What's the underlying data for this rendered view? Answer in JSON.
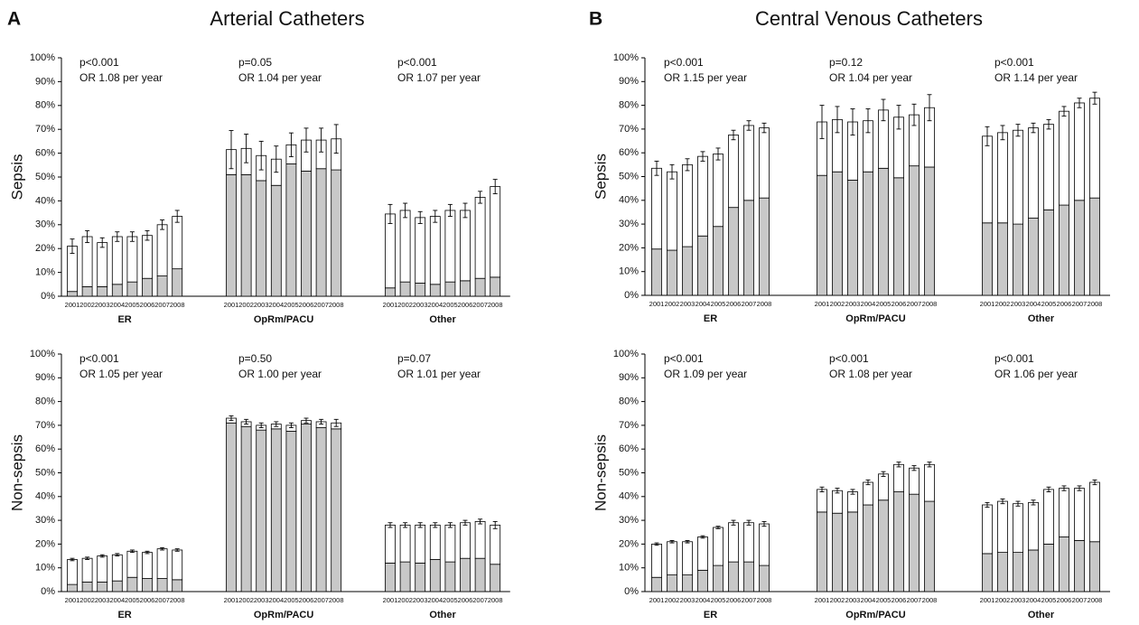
{
  "panels": [
    {
      "letter": "A",
      "title": "Arterial Catheters"
    },
    {
      "letter": "B",
      "title": "Central Venous Catheters"
    }
  ],
  "chart_data": [
    {
      "type": "bar",
      "ylabel": "Sepsis",
      "ylim": [
        0,
        100
      ],
      "yticks": [
        {
          "value": 0,
          "label": "0%"
        },
        {
          "value": 10,
          "label": "10%"
        },
        {
          "value": 20,
          "label": "20%"
        },
        {
          "value": 30,
          "label": "30%"
        },
        {
          "value": 40,
          "label": "40%"
        },
        {
          "value": 50,
          "label": "50%"
        },
        {
          "value": 60,
          "label": "60%"
        },
        {
          "value": 70,
          "label": "70%"
        },
        {
          "value": 80,
          "label": "80%"
        },
        {
          "value": 90,
          "label": "90%"
        },
        {
          "value": 100,
          "label": "100%"
        }
      ],
      "groups": [
        {
          "label": "ER",
          "annotations": [
            "p<0.001",
            "OR 1.08 per year"
          ],
          "categories": [
            "2001",
            "2002",
            "2003",
            "2004",
            "2005",
            "2006",
            "2007",
            "2008"
          ],
          "series": [
            {
              "color": "#c8c8c8",
              "values": [
                2,
                4,
                4,
                5,
                6,
                7.5,
                8.5,
                11.5
              ]
            },
            {
              "color": "#ffffff",
              "values": [
                19,
                21,
                18.5,
                20,
                19,
                18,
                21.5,
                22
              ],
              "errors": [
                3,
                2.5,
                2,
                2,
                2,
                2,
                2,
                2.5
              ]
            }
          ]
        },
        {
          "label": "OpRm/PACU",
          "annotations": [
            "p=0.05",
            "OR 1.04 per year"
          ],
          "categories": [
            "2001",
            "2002",
            "2003",
            "2004",
            "2005",
            "2006",
            "2007",
            "2008"
          ],
          "series": [
            {
              "color": "#c8c8c8",
              "values": [
                51,
                51,
                48.5,
                46.5,
                55.5,
                52.5,
                53.5,
                53
              ]
            },
            {
              "color": "#ffffff",
              "values": [
                10.5,
                11,
                10.5,
                11,
                8,
                13,
                12,
                13
              ],
              "errors": [
                8,
                6,
                6,
                5.5,
                5,
                5,
                5,
                6
              ]
            }
          ]
        },
        {
          "label": "Other",
          "annotations": [
            "p<0.001",
            "OR 1.07 per year"
          ],
          "categories": [
            "2001",
            "2002",
            "2003",
            "2004",
            "2005",
            "2006",
            "2007",
            "2008"
          ],
          "series": [
            {
              "color": "#c8c8c8",
              "values": [
                3.5,
                6,
                5.5,
                5,
                6,
                6.5,
                7.5,
                8
              ]
            },
            {
              "color": "#ffffff",
              "values": [
                31,
                30,
                27.5,
                28.5,
                30,
                29.5,
                34,
                38
              ],
              "errors": [
                4,
                3,
                2.5,
                2.5,
                2.5,
                3,
                2.5,
                3
              ]
            }
          ]
        }
      ]
    },
    {
      "type": "bar",
      "ylabel": "Non-sepsis",
      "ylim": [
        0,
        100
      ],
      "yticks": [
        {
          "value": 0,
          "label": "0%"
        },
        {
          "value": 10,
          "label": "10%"
        },
        {
          "value": 20,
          "label": "20%"
        },
        {
          "value": 30,
          "label": "30%"
        },
        {
          "value": 40,
          "label": "40%"
        },
        {
          "value": 50,
          "label": "50%"
        },
        {
          "value": 60,
          "label": "60%"
        },
        {
          "value": 70,
          "label": "70%"
        },
        {
          "value": 80,
          "label": "80%"
        },
        {
          "value": 90,
          "label": "90%"
        },
        {
          "value": 100,
          "label": "100%"
        }
      ],
      "groups": [
        {
          "label": "ER",
          "annotations": [
            "p<0.001",
            "OR 1.05 per year"
          ],
          "categories": [
            "2001",
            "2002",
            "2003",
            "2004",
            "2005",
            "2006",
            "2007",
            "2008"
          ],
          "series": [
            {
              "color": "#c8c8c8",
              "values": [
                3,
                4,
                4,
                4.5,
                6,
                5.5,
                5.5,
                5
              ]
            },
            {
              "color": "#ffffff",
              "values": [
                10.5,
                10,
                11,
                11,
                11,
                11,
                12.5,
                12.5
              ],
              "errors": [
                0.5,
                0.5,
                0.5,
                0.5,
                0.5,
                0.5,
                0.5,
                0.5
              ]
            }
          ]
        },
        {
          "label": "OpRm/PACU",
          "annotations": [
            "p=0.50",
            "OR 1.00 per year"
          ],
          "categories": [
            "2001",
            "2002",
            "2003",
            "2004",
            "2005",
            "2006",
            "2007",
            "2008"
          ],
          "series": [
            {
              "color": "#c8c8c8",
              "values": [
                71,
                69.5,
                68,
                68.5,
                67.5,
                70.5,
                69,
                68.5
              ]
            },
            {
              "color": "#ffffff",
              "values": [
                2,
                2,
                2,
                2,
                2.5,
                1.5,
                2.5,
                2.5
              ],
              "errors": [
                1,
                1,
                1,
                1,
                1,
                1,
                1,
                1.5
              ]
            }
          ]
        },
        {
          "label": "Other",
          "annotations": [
            "p=0.07",
            "OR 1.01 per year"
          ],
          "categories": [
            "2001",
            "2002",
            "2003",
            "2004",
            "2005",
            "2006",
            "2007",
            "2008"
          ],
          "series": [
            {
              "color": "#c8c8c8",
              "values": [
                12,
                12.5,
                12,
                13.5,
                12.5,
                14,
                14,
                11.5
              ]
            },
            {
              "color": "#ffffff",
              "values": [
                16,
                15.5,
                16,
                14.5,
                15.5,
                15,
                15.5,
                16.5
              ],
              "errors": [
                1,
                1,
                1,
                1,
                1,
                1,
                1,
                1.5
              ]
            }
          ]
        }
      ]
    },
    {
      "type": "bar",
      "ylabel": "Sepsis",
      "ylim": [
        0,
        100
      ],
      "yticks": [
        {
          "value": 0,
          "label": "0%"
        },
        {
          "value": 10,
          "label": "10%"
        },
        {
          "value": 20,
          "label": "20%"
        },
        {
          "value": 30,
          "label": "30%"
        },
        {
          "value": 40,
          "label": "40%"
        },
        {
          "value": 50,
          "label": "50%"
        },
        {
          "value": 60,
          "label": "60%"
        },
        {
          "value": 70,
          "label": "70%"
        },
        {
          "value": 80,
          "label": "80%"
        },
        {
          "value": 90,
          "label": "90%"
        },
        {
          "value": 100,
          "label": "100%"
        }
      ],
      "groups": [
        {
          "label": "ER",
          "annotations": [
            "p<0.001",
            "OR 1.15 per year"
          ],
          "categories": [
            "2001",
            "2002",
            "2003",
            "2004",
            "2005",
            "2006",
            "2007",
            "2008"
          ],
          "series": [
            {
              "color": "#c8c8c8",
              "values": [
                19.5,
                19,
                20.5,
                25,
                29,
                37,
                40,
                41
              ]
            },
            {
              "color": "#ffffff",
              "values": [
                34,
                33,
                34.5,
                33.5,
                30.5,
                30.5,
                31.5,
                29.5
              ],
              "errors": [
                3,
                3,
                2.5,
                2,
                2.5,
                2,
                2,
                2
              ]
            }
          ]
        },
        {
          "label": "OpRm/PACU",
          "annotations": [
            "p=0.12",
            "OR 1.04 per year"
          ],
          "categories": [
            "2001",
            "2002",
            "2003",
            "2004",
            "2005",
            "2006",
            "2007",
            "2008"
          ],
          "series": [
            {
              "color": "#c8c8c8",
              "values": [
                50.5,
                52,
                48.5,
                52,
                53.5,
                49.5,
                54.5,
                54
              ]
            },
            {
              "color": "#ffffff",
              "values": [
                22.5,
                22,
                24.5,
                21.5,
                24.5,
                25.5,
                21.5,
                25
              ],
              "errors": [
                7,
                5.5,
                5.5,
                5,
                4.5,
                5,
                4.5,
                5.5
              ]
            }
          ]
        },
        {
          "label": "Other",
          "annotations": [
            "p<0.001",
            "OR 1.14 per year"
          ],
          "categories": [
            "2001",
            "2002",
            "2003",
            "2004",
            "2005",
            "2006",
            "2007",
            "2008"
          ],
          "series": [
            {
              "color": "#c8c8c8",
              "values": [
                30.5,
                30.5,
                30,
                32.5,
                36,
                38,
                40,
                41
              ]
            },
            {
              "color": "#ffffff",
              "values": [
                36.5,
                38,
                39.5,
                38,
                36,
                39.5,
                41,
                42
              ],
              "errors": [
                4,
                3,
                2.5,
                2,
                2,
                2,
                2,
                2.5
              ]
            }
          ]
        }
      ]
    },
    {
      "type": "bar",
      "ylabel": "Non-sepsis",
      "ylim": [
        0,
        100
      ],
      "yticks": [
        {
          "value": 0,
          "label": "0%"
        },
        {
          "value": 10,
          "label": "10%"
        },
        {
          "value": 20,
          "label": "20%"
        },
        {
          "value": 30,
          "label": "30%"
        },
        {
          "value": 40,
          "label": "40%"
        },
        {
          "value": 50,
          "label": "50%"
        },
        {
          "value": 60,
          "label": "60%"
        },
        {
          "value": 70,
          "label": "70%"
        },
        {
          "value": 80,
          "label": "80%"
        },
        {
          "value": 90,
          "label": "90%"
        },
        {
          "value": 100,
          "label": "100%"
        }
      ],
      "groups": [
        {
          "label": "ER",
          "annotations": [
            "p<0.001",
            "OR 1.09 per year"
          ],
          "categories": [
            "2001",
            "2002",
            "2003",
            "2004",
            "2005",
            "2006",
            "2007",
            "2008"
          ],
          "series": [
            {
              "color": "#c8c8c8",
              "values": [
                6,
                7,
                7,
                9,
                11,
                12.5,
                12.5,
                11
              ]
            },
            {
              "color": "#ffffff",
              "values": [
                14,
                14,
                14,
                14,
                16,
                16.5,
                16.5,
                17.5
              ],
              "errors": [
                0.5,
                0.5,
                0.5,
                0.5,
                0.5,
                1,
                1,
                1
              ]
            }
          ]
        },
        {
          "label": "OpRm/PACU",
          "annotations": [
            "p<0.001",
            "OR 1.08 per year"
          ],
          "categories": [
            "2001",
            "2002",
            "2003",
            "2004",
            "2005",
            "2006",
            "2007",
            "2008"
          ],
          "series": [
            {
              "color": "#c8c8c8",
              "values": [
                33.5,
                33,
                33.5,
                36.5,
                38.5,
                42,
                41,
                38
              ]
            },
            {
              "color": "#ffffff",
              "values": [
                9.5,
                9.5,
                8.5,
                9.5,
                11,
                11.5,
                11,
                15.5
              ],
              "errors": [
                1,
                1,
                1,
                1,
                1,
                1,
                1,
                1
              ]
            }
          ]
        },
        {
          "label": "Other",
          "annotations": [
            "p<0.001",
            "OR 1.06 per year"
          ],
          "categories": [
            "2001",
            "2002",
            "2003",
            "2004",
            "2005",
            "2006",
            "2007",
            "2008"
          ],
          "series": [
            {
              "color": "#c8c8c8",
              "values": [
                16,
                16.5,
                16.5,
                17.5,
                20,
                23,
                21.5,
                21
              ]
            },
            {
              "color": "#ffffff",
              "values": [
                20.5,
                21.5,
                20.5,
                20,
                23,
                20.5,
                22,
                25
              ],
              "errors": [
                1,
                1,
                1,
                1,
                1,
                1,
                1,
                1
              ]
            }
          ]
        }
      ]
    }
  ]
}
